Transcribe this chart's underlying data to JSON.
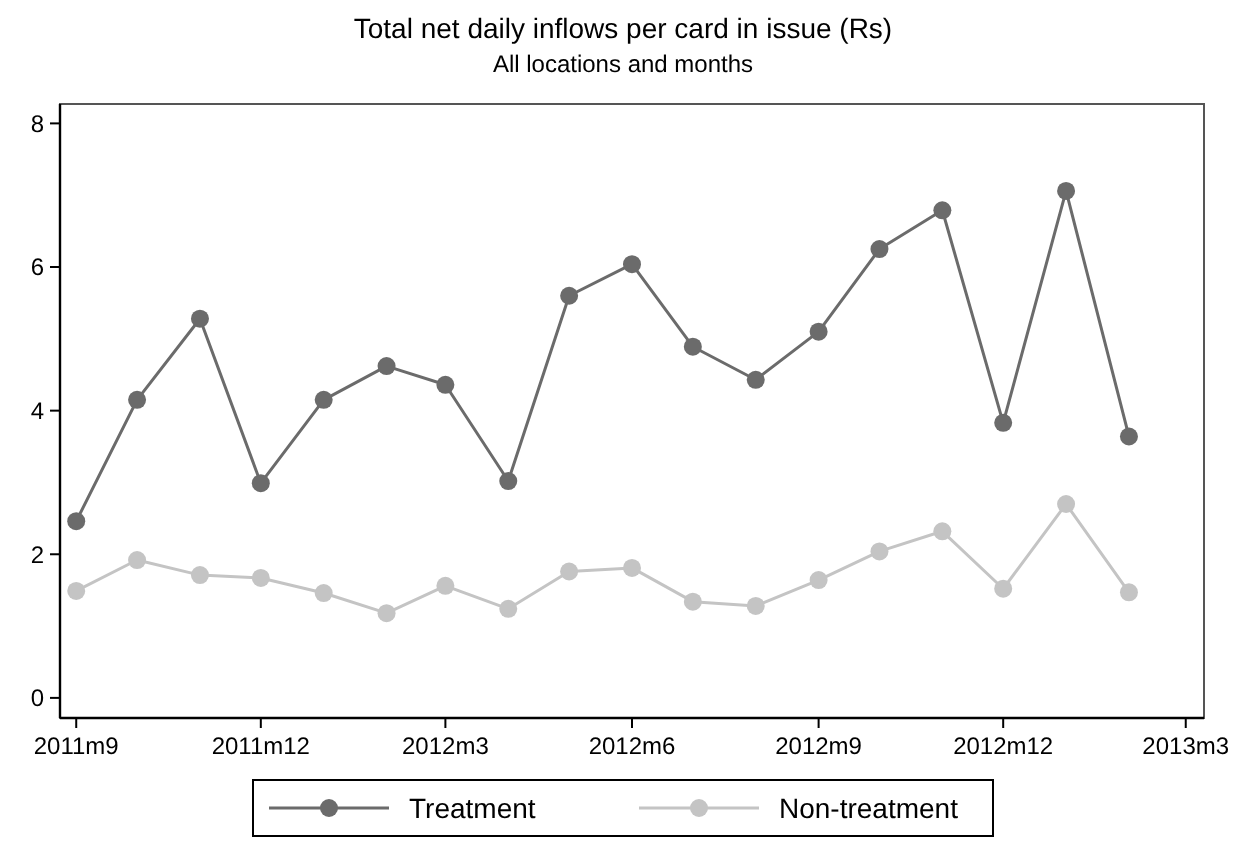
{
  "chart_data": {
    "type": "line",
    "title": "Total net daily inflows per card in issue (Rs)",
    "subtitle": "All locations and months",
    "x": [
      "2011-09",
      "2011-10",
      "2011-11",
      "2011-12",
      "2012-01",
      "2012-02",
      "2012-03",
      "2012-04",
      "2012-05",
      "2012-06",
      "2012-07",
      "2012-08",
      "2012-09",
      "2012-10",
      "2012-11",
      "2012-12",
      "2013-01",
      "2013-02"
    ],
    "xlim": [
      "2011-08-24",
      "2013-03-10"
    ],
    "xticks": [
      {
        "value": "2011-09",
        "label": "2011m9"
      },
      {
        "value": "2011-12",
        "label": "2011m12"
      },
      {
        "value": "2012-03",
        "label": "2012m3"
      },
      {
        "value": "2012-06",
        "label": "2012m6"
      },
      {
        "value": "2012-09",
        "label": "2012m9"
      },
      {
        "value": "2012-12",
        "label": "2012m12"
      },
      {
        "value": "2013-03",
        "label": "2013m3"
      }
    ],
    "ylim": [
      -0.28,
      8.27
    ],
    "yticks": [
      0,
      2,
      4,
      6,
      8
    ],
    "series": [
      {
        "name": "Treatment",
        "color": "#6b6b6b",
        "values": [
          2.46,
          4.15,
          5.28,
          2.99,
          4.15,
          4.62,
          4.36,
          3.02,
          5.6,
          6.04,
          4.89,
          4.43,
          5.1,
          6.25,
          6.79,
          3.83,
          7.06,
          3.64
        ]
      },
      {
        "name": "Non-treatment",
        "color": "#c4c4c4",
        "values": [
          1.49,
          1.92,
          1.71,
          1.67,
          1.46,
          1.18,
          1.56,
          1.24,
          1.76,
          1.81,
          1.34,
          1.28,
          1.64,
          2.04,
          2.32,
          1.52,
          2.7,
          1.47
        ]
      }
    ],
    "marker": "circle",
    "line_style": "solid",
    "grid": false,
    "legend": "bottom"
  }
}
